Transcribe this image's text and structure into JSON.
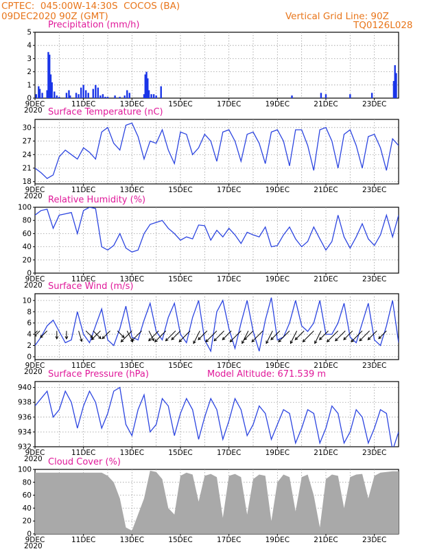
{
  "header": {
    "line1": "CPTEC:  045:00W-14:30S  COCOS (BA)",
    "line2": "09DEC2020 90Z (GMT)",
    "grid_note": "Vertical Grid Line: 90Z",
    "code": "TQ0126L028"
  },
  "colors": {
    "header": "#e8751a",
    "title": "#e0199a",
    "line": "#2b44e0",
    "bar": "#1a35e8",
    "cloud": "#a9a9a9",
    "arrow": "#000000"
  },
  "x_axis": {
    "tick_labels": [
      "9DEC",
      "11DEC",
      "13DEC",
      "15DEC",
      "17DEC",
      "19DEC",
      "21DEC",
      "23DEC"
    ],
    "tick_days": [
      9,
      11,
      13,
      15,
      17,
      19,
      21,
      23
    ],
    "range_days": [
      9,
      24
    ],
    "year_fragment": "2020"
  },
  "chart_data": [
    {
      "id": "precip",
      "type": "bar",
      "title": "Precipitation (mm/h)",
      "ylim": [
        0,
        5
      ],
      "yticks": [
        0,
        1,
        2,
        3,
        4,
        5
      ],
      "grid": true,
      "x": [
        9.05,
        9.15,
        9.2,
        9.3,
        9.5,
        9.55,
        9.6,
        9.65,
        9.7,
        9.8,
        9.9,
        10.0,
        10.3,
        10.4,
        10.45,
        10.7,
        10.8,
        10.9,
        11.0,
        11.1,
        11.2,
        11.4,
        11.5,
        11.6,
        11.7,
        11.8,
        11.9,
        12.0,
        12.3,
        12.5,
        12.7,
        12.8,
        12.9,
        13.5,
        13.55,
        13.6,
        13.65,
        13.7,
        13.8,
        13.9,
        14.0,
        14.2,
        19.6,
        20.8,
        21.0,
        22.0,
        22.9,
        23.8,
        23.85,
        23.9
      ],
      "values": [
        0.3,
        0.9,
        0.7,
        0.4,
        0.6,
        3.5,
        3.3,
        1.8,
        1.2,
        0.5,
        0.2,
        0.1,
        0.4,
        0.6,
        0.2,
        0.4,
        0.3,
        0.8,
        1.0,
        0.6,
        0.4,
        0.7,
        1.0,
        0.8,
        0.2,
        0.3,
        0.1,
        0.1,
        0.2,
        0.1,
        0.2,
        0.6,
        0.4,
        0.3,
        1.8,
        2.0,
        1.5,
        0.6,
        0.3,
        0.3,
        0.2,
        0.9,
        0.2,
        0.4,
        0.3,
        0.3,
        0.4,
        1.3,
        2.5,
        1.9
      ]
    },
    {
      "id": "temperature",
      "type": "line",
      "title": "Surface Temperature (nC)",
      "ylim": [
        17.5,
        31.8
      ],
      "yticks": [
        18,
        21,
        24,
        27,
        30
      ],
      "grid": true,
      "x": [
        9.0,
        9.25,
        9.5,
        9.75,
        10.0,
        10.25,
        10.5,
        10.75,
        11.0,
        11.25,
        11.5,
        11.75,
        12.0,
        12.25,
        12.5,
        12.75,
        13.0,
        13.25,
        13.5,
        13.75,
        14.0,
        14.25,
        14.5,
        14.75,
        15.0,
        15.25,
        15.5,
        15.75,
        16.0,
        16.25,
        16.5,
        16.75,
        17.0,
        17.25,
        17.5,
        17.75,
        18.0,
        18.25,
        18.5,
        18.75,
        19.0,
        19.25,
        19.5,
        19.75,
        20.0,
        20.25,
        20.5,
        20.75,
        21.0,
        21.25,
        21.5,
        21.75,
        22.0,
        22.25,
        22.5,
        22.75,
        23.0,
        23.25,
        23.5,
        23.75,
        24.0
      ],
      "values": [
        21.0,
        20.0,
        18.7,
        19.5,
        23.5,
        25.0,
        24.0,
        23.0,
        25.5,
        24.5,
        23.0,
        29.0,
        30.0,
        26.5,
        25.0,
        30.5,
        31.0,
        28.0,
        23.0,
        27.0,
        26.5,
        29.5,
        25.0,
        22.0,
        29.0,
        28.5,
        24.0,
        25.5,
        28.5,
        27.0,
        22.5,
        29.0,
        29.5,
        27.0,
        22.5,
        28.5,
        29.0,
        26.5,
        22.0,
        29.0,
        29.5,
        27.0,
        21.5,
        29.5,
        29.5,
        26.0,
        20.5,
        29.5,
        30.0,
        27.0,
        21.0,
        28.5,
        29.5,
        26.0,
        21.0,
        28.0,
        28.5,
        25.5,
        20.5,
        27.5,
        26.0
      ]
    },
    {
      "id": "humidity",
      "type": "line",
      "title": "Relative Humidity (%)",
      "ylim": [
        0,
        100
      ],
      "yticks": [
        0,
        20,
        40,
        60,
        80,
        100
      ],
      "grid": true,
      "x": [
        9.0,
        9.25,
        9.5,
        9.75,
        10.0,
        10.25,
        10.5,
        10.75,
        11.0,
        11.25,
        11.5,
        11.75,
        12.0,
        12.25,
        12.5,
        12.75,
        13.0,
        13.25,
        13.5,
        13.75,
        14.0,
        14.25,
        14.5,
        14.75,
        15.0,
        15.25,
        15.5,
        15.75,
        16.0,
        16.25,
        16.5,
        16.75,
        17.0,
        17.25,
        17.5,
        17.75,
        18.0,
        18.25,
        18.5,
        18.75,
        19.0,
        19.25,
        19.5,
        19.75,
        20.0,
        20.25,
        20.5,
        20.75,
        21.0,
        21.25,
        21.5,
        21.75,
        22.0,
        22.25,
        22.5,
        22.75,
        23.0,
        23.25,
        23.5,
        23.75,
        24.0
      ],
      "values": [
        88,
        95,
        97,
        68,
        88,
        90,
        92,
        60,
        95,
        100,
        98,
        40,
        35,
        42,
        60,
        38,
        32,
        35,
        60,
        74,
        77,
        80,
        68,
        60,
        50,
        55,
        52,
        73,
        72,
        50,
        65,
        55,
        68,
        58,
        45,
        62,
        58,
        55,
        70,
        40,
        42,
        58,
        70,
        52,
        40,
        48,
        70,
        52,
        35,
        48,
        88,
        55,
        38,
        55,
        75,
        52,
        42,
        58,
        88,
        55,
        88
      ]
    },
    {
      "id": "wind",
      "type": "line",
      "title": "Surface Wind (m/s)",
      "ylim": [
        -0.5,
        11.2
      ],
      "yticks": [
        0,
        2,
        4,
        6,
        8,
        10
      ],
      "grid": true,
      "x": [
        9.0,
        9.25,
        9.5,
        9.75,
        10.0,
        10.25,
        10.5,
        10.75,
        11.0,
        11.25,
        11.5,
        11.75,
        12.0,
        12.25,
        12.5,
        12.75,
        13.0,
        13.25,
        13.5,
        13.75,
        14.0,
        14.25,
        14.5,
        14.75,
        15.0,
        15.25,
        15.5,
        15.75,
        16.0,
        16.25,
        16.5,
        16.75,
        17.0,
        17.25,
        17.5,
        17.75,
        18.0,
        18.25,
        18.5,
        18.75,
        19.0,
        19.25,
        19.5,
        19.75,
        20.0,
        20.25,
        20.5,
        20.75,
        21.0,
        21.25,
        21.5,
        21.75,
        22.0,
        22.25,
        22.5,
        22.75,
        23.0,
        23.25,
        23.5,
        23.75,
        24.0
      ],
      "values": [
        2.0,
        3.5,
        5.5,
        6.5,
        4.5,
        2.5,
        3.0,
        8.0,
        4.0,
        2.5,
        5.5,
        8.5,
        3.0,
        2.0,
        5.0,
        9.0,
        3.5,
        3.0,
        6.5,
        9.5,
        4.5,
        3.0,
        7.0,
        9.5,
        4.0,
        2.5,
        7.0,
        10.0,
        3.0,
        1.0,
        8.0,
        10.0,
        5.0,
        1.5,
        6.0,
        10.0,
        4.5,
        1.0,
        6.5,
        10.5,
        3.0,
        3.5,
        6.0,
        10.0,
        5.5,
        4.5,
        6.0,
        10.0,
        4.0,
        4.0,
        6.0,
        9.5,
        3.5,
        2.5,
        6.0,
        9.5,
        3.0,
        2.0,
        5.5,
        10.0,
        2.5
      ],
      "barb_y": 4.6,
      "barbs_day": [
        9.1,
        9.2,
        9.5,
        9.9,
        10.3,
        10.8,
        11.1,
        11.4,
        11.7,
        12.1,
        12.4,
        12.8,
        13.0,
        13.4,
        13.7,
        14.1,
        14.4,
        14.8,
        15.0,
        15.4,
        15.8,
        16.1,
        16.5,
        16.8,
        17.1,
        17.5,
        17.8,
        18.0,
        18.4,
        18.8,
        19.1,
        19.5,
        19.8,
        20.1,
        20.5,
        20.8,
        21.1,
        21.5,
        21.8,
        22.1,
        22.5,
        22.8,
        23.1,
        23.5
      ],
      "barbs_u": [
        -1,
        -1,
        -1,
        0,
        0,
        0.3,
        1,
        1,
        -1,
        -1,
        1,
        0.5,
        -1,
        -1,
        0.5,
        -1,
        -1,
        -1,
        -1,
        -1,
        -0.5,
        -1,
        -1,
        -1,
        -1,
        -1,
        -0.5,
        -1,
        -1,
        -0.5,
        -1,
        -1,
        -0.5,
        -1,
        -1,
        -0.5,
        -1,
        -1,
        -1,
        -1,
        -1,
        -1,
        -1,
        -1
      ],
      "barbs_v": [
        -1,
        -1,
        -1,
        -1,
        -1,
        -1,
        -1,
        -1,
        -1,
        -1,
        -1,
        -1,
        -1,
        -1,
        -1,
        -1,
        -1,
        -1,
        -1,
        -1,
        -1,
        -1,
        -1,
        -1,
        -1,
        -1,
        -1,
        -1,
        -1,
        -1,
        -1,
        -1,
        -1,
        -1,
        -1,
        -1,
        -1,
        -1,
        -1,
        -1,
        -1,
        -1,
        -1,
        -1
      ],
      "barbs_speed": [
        2,
        3,
        4,
        3,
        3,
        5,
        4,
        5,
        6,
        5,
        4,
        6,
        8,
        7,
        5,
        7,
        8,
        7,
        6,
        8,
        7,
        6,
        8,
        7,
        6,
        8,
        7,
        6,
        8,
        7,
        6,
        8,
        7,
        6,
        8,
        7,
        6,
        8,
        7,
        6,
        8,
        7,
        6,
        5
      ]
    },
    {
      "id": "pressure",
      "type": "line",
      "title": "Surface Pressure (hPa)",
      "ylim": [
        932,
        940.8
      ],
      "yticks": [
        932,
        934,
        936,
        938,
        940
      ],
      "grid": true,
      "x": [
        9.0,
        9.25,
        9.5,
        9.75,
        10.0,
        10.25,
        10.5,
        10.75,
        11.0,
        11.25,
        11.5,
        11.75,
        12.0,
        12.25,
        12.5,
        12.75,
        13.0,
        13.25,
        13.5,
        13.75,
        14.0,
        14.25,
        14.5,
        14.75,
        15.0,
        15.25,
        15.5,
        15.75,
        16.0,
        16.25,
        16.5,
        16.75,
        17.0,
        17.25,
        17.5,
        17.75,
        18.0,
        18.25,
        18.5,
        18.75,
        19.0,
        19.25,
        19.5,
        19.75,
        20.0,
        20.25,
        20.5,
        20.75,
        21.0,
        21.25,
        21.5,
        21.75,
        22.0,
        22.25,
        22.5,
        22.75,
        23.0,
        23.25,
        23.5,
        23.75,
        24.0
      ],
      "values": [
        937.5,
        938.5,
        939.5,
        936.0,
        937.0,
        939.5,
        938.0,
        934.5,
        937.5,
        939.5,
        938.0,
        934.5,
        936.5,
        939.5,
        940.0,
        935.0,
        933.5,
        937.0,
        939.0,
        934.0,
        935.0,
        938.5,
        937.5,
        933.5,
        936.5,
        938.5,
        937.0,
        933.0,
        936.0,
        938.5,
        937.0,
        933.0,
        935.5,
        938.5,
        937.0,
        933.5,
        935.0,
        937.5,
        936.5,
        933.0,
        935.0,
        937.0,
        936.5,
        932.5,
        934.5,
        937.0,
        936.5,
        932.5,
        934.5,
        937.5,
        936.5,
        932.5,
        934.0,
        937.0,
        936.0,
        932.5,
        934.5,
        937.0,
        936.5,
        931.5,
        934.0
      ]
    },
    {
      "id": "cloud",
      "type": "area",
      "title": "Cloud Cover (%)",
      "ylim": [
        0,
        100
      ],
      "yticks": [
        0,
        20,
        40,
        60,
        80,
        100
      ],
      "grid": true,
      "x": [
        9.0,
        9.25,
        9.5,
        9.75,
        10.0,
        10.25,
        10.5,
        10.75,
        11.0,
        11.25,
        11.5,
        11.75,
        12.0,
        12.25,
        12.5,
        12.75,
        13.0,
        13.25,
        13.5,
        13.75,
        14.0,
        14.25,
        14.5,
        14.75,
        15.0,
        15.25,
        15.5,
        15.75,
        16.0,
        16.25,
        16.5,
        16.75,
        17.0,
        17.25,
        17.5,
        17.75,
        18.0,
        18.25,
        18.5,
        18.75,
        19.0,
        19.25,
        19.5,
        19.75,
        20.0,
        20.25,
        20.5,
        20.75,
        21.0,
        21.25,
        21.5,
        21.75,
        22.0,
        22.25,
        22.5,
        22.75,
        23.0,
        23.25,
        23.5,
        23.75,
        24.0
      ],
      "values": [
        95,
        95,
        95,
        95,
        95,
        95,
        95,
        95,
        95,
        95,
        95,
        95,
        90,
        80,
        55,
        10,
        5,
        30,
        55,
        98,
        96,
        85,
        40,
        30,
        90,
        95,
        92,
        50,
        90,
        93,
        88,
        25,
        90,
        93,
        88,
        30,
        85,
        92,
        90,
        20,
        80,
        92,
        88,
        35,
        88,
        92,
        60,
        10,
        85,
        92,
        90,
        40,
        88,
        92,
        93,
        55,
        90,
        95,
        96,
        97,
        97
      ]
    }
  ],
  "panel_extra": {
    "pressure_model_altitude": "Model Altitude: 671.539  m"
  }
}
